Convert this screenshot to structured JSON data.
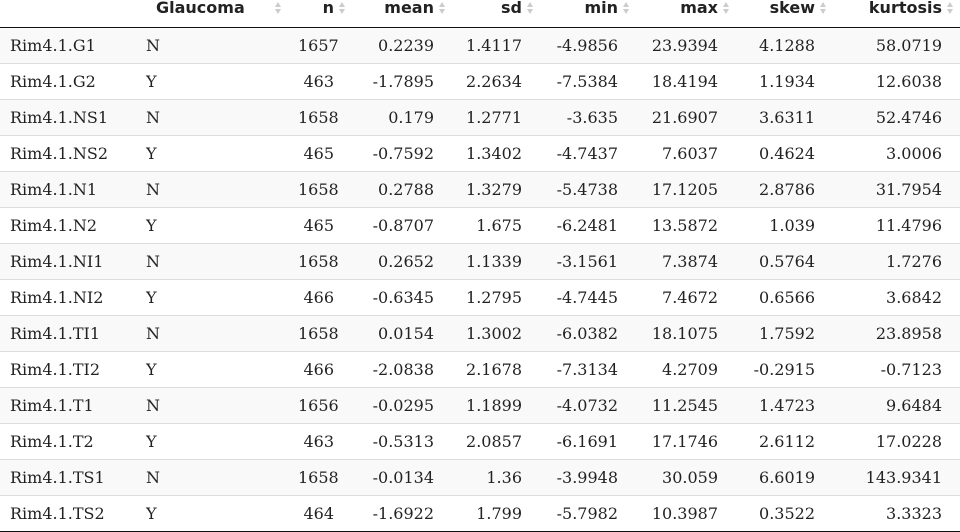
{
  "columns": [
    "",
    "Glaucoma",
    "n",
    "mean",
    "sd",
    "min",
    "max",
    "skew",
    "kurtosis"
  ],
  "rows": [
    [
      "Rim4.1.G1",
      "N",
      "1657",
      "0.2239",
      "1.4117",
      "-4.9856",
      "23.9394",
      "4.1288",
      "58.0719"
    ],
    [
      "Rim4.1.G2",
      "Y",
      "463",
      "-1.7895",
      "2.2634",
      "-7.5384",
      "18.4194",
      "1.1934",
      "12.6038"
    ],
    [
      "Rim4.1.NS1",
      "N",
      "1658",
      "0.179",
      "1.2771",
      "-3.635",
      "21.6907",
      "3.6311",
      "52.4746"
    ],
    [
      "Rim4.1.NS2",
      "Y",
      "465",
      "-0.7592",
      "1.3402",
      "-4.7437",
      "7.6037",
      "0.4624",
      "3.0006"
    ],
    [
      "Rim4.1.N1",
      "N",
      "1658",
      "0.2788",
      "1.3279",
      "-5.4738",
      "17.1205",
      "2.8786",
      "31.7954"
    ],
    [
      "Rim4.1.N2",
      "Y",
      "465",
      "-0.8707",
      "1.675",
      "-6.2481",
      "13.5872",
      "1.039",
      "11.4796"
    ],
    [
      "Rim4.1.NI1",
      "N",
      "1658",
      "0.2652",
      "1.1339",
      "-3.1561",
      "7.3874",
      "0.5764",
      "1.7276"
    ],
    [
      "Rim4.1.NI2",
      "Y",
      "466",
      "-0.6345",
      "1.2795",
      "-4.7445",
      "7.4672",
      "0.6566",
      "3.6842"
    ],
    [
      "Rim4.1.TI1",
      "N",
      "1658",
      "0.0154",
      "1.3002",
      "-6.0382",
      "18.1075",
      "1.7592",
      "23.8958"
    ],
    [
      "Rim4.1.TI2",
      "Y",
      "466",
      "-2.0838",
      "2.1678",
      "-7.3134",
      "4.2709",
      "-0.2915",
      "-0.7123"
    ],
    [
      "Rim4.1.T1",
      "N",
      "1656",
      "-0.0295",
      "1.1899",
      "-4.0732",
      "11.2545",
      "1.4723",
      "9.6484"
    ],
    [
      "Rim4.1.T2",
      "Y",
      "463",
      "-0.5313",
      "2.0857",
      "-6.1691",
      "17.1746",
      "2.6112",
      "17.0228"
    ],
    [
      "Rim4.1.TS1",
      "N",
      "1658",
      "-0.0134",
      "1.36",
      "-3.9948",
      "30.059",
      "6.6019",
      "143.9341"
    ],
    [
      "Rim4.1.TS2",
      "Y",
      "464",
      "-1.6922",
      "1.799",
      "-5.7982",
      "10.3987",
      "0.3522",
      "3.3323"
    ]
  ],
  "sort_icon": "sort-arrows-icon"
}
